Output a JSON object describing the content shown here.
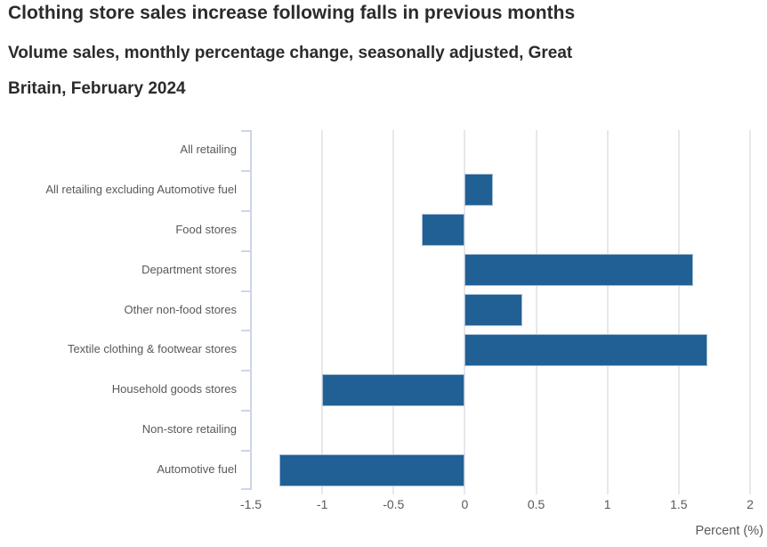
{
  "chart_data": {
    "type": "bar",
    "orientation": "horizontal",
    "title": "Clothing store sales increase following falls in previous months",
    "subtitle": "Volume sales, monthly percentage change, seasonally adjusted, Great Britain, February 2024",
    "categories": [
      "All retailing",
      "All retailing excluding Automotive fuel",
      "Food stores",
      "Department stores",
      "Other non-food stores",
      "Textile clothing & footwear stores",
      "Household goods stores",
      "Non-store retailing",
      "Automotive fuel"
    ],
    "values": [
      0,
      0.2,
      -0.3,
      1.6,
      0.4,
      1.7,
      -1,
      0,
      -1.3
    ],
    "xlabel": "Percent (%)",
    "xlim": [
      -1.5,
      2
    ],
    "xticks": [
      -1.5,
      -1,
      -0.5,
      0,
      0.5,
      1,
      1.5,
      2
    ],
    "xtick_labels": [
      "-1.5",
      "-1",
      "-0.5",
      "0",
      "0.5",
      "1",
      "1.5",
      "2"
    ],
    "grid": "vertical gridlines at x ticks, zero baseline for bars",
    "legend": "none",
    "colors": {
      "bar_fill": "#206095",
      "bar_border": "#a5bdd5",
      "axis_line": "#ccd6e8",
      "gridline": "#e8e8ea",
      "tick_label": "#595959",
      "category_label": "#595959",
      "title_text": "#2b2b2b"
    }
  }
}
